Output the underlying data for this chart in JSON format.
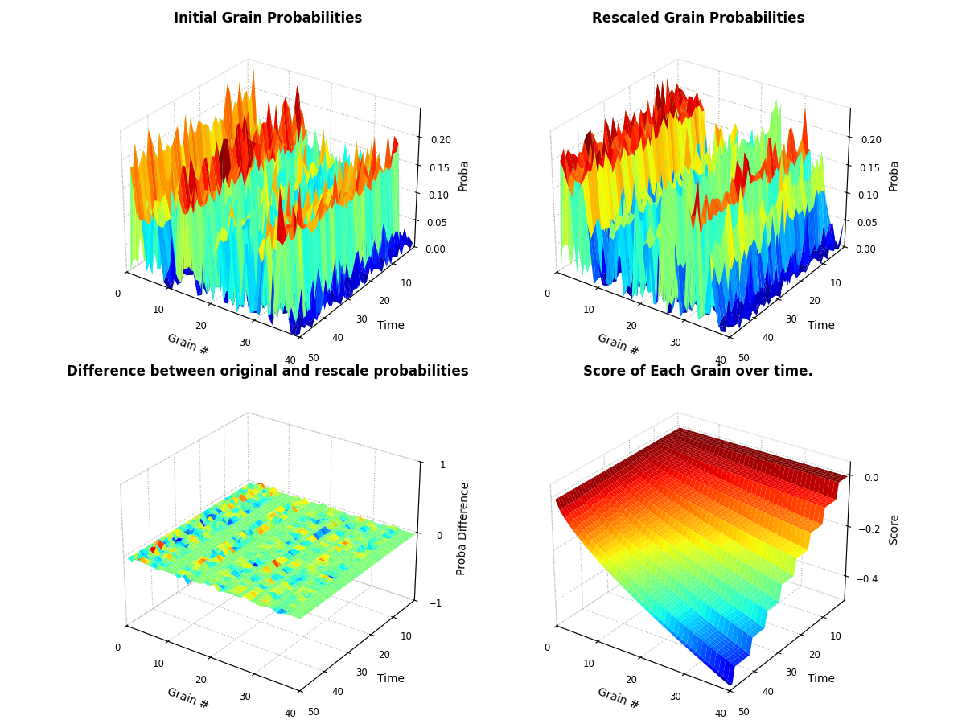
{
  "title1": "Initial Grain Probabilities",
  "title2": "Rescaled Grain Probabilities",
  "title3": "Difference between original and rescale probabilities",
  "title4": "Score of Each Grain over time.",
  "xlabel": "Grain #",
  "ylabel": "Time",
  "zlabel1": "Proba",
  "zlabel3": "Proba Difference",
  "zlabel4": "Score",
  "n_grains": 40,
  "n_time": 50,
  "grain_max": 40,
  "time_max": 50,
  "proba_zlim": 0.25,
  "score_min": -0.5,
  "seed": 42,
  "background": "#ffffff",
  "title_fontsize": 12,
  "label_fontsize": 10,
  "elev": 30,
  "azim": -135
}
